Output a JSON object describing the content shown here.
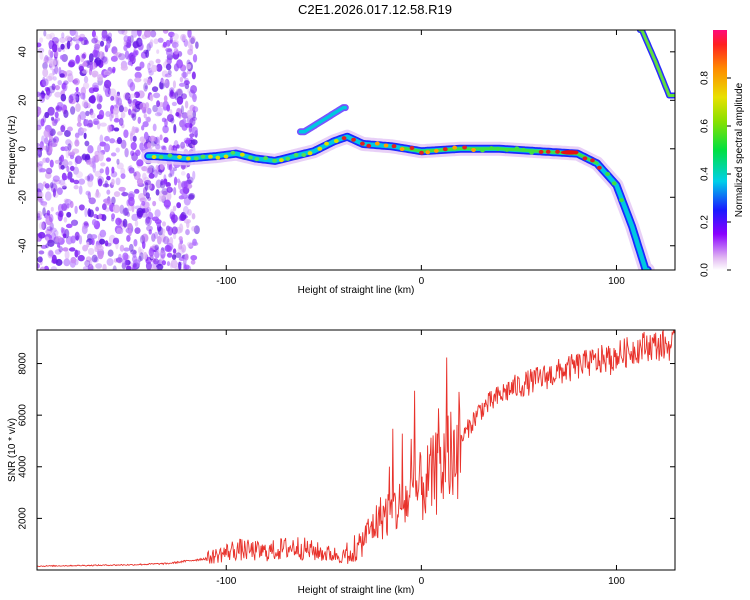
{
  "title": "C2E1.2026.017.12.58.R19",
  "chart_data": [
    {
      "type": "heatmap",
      "name": "spectrogram",
      "xlabel": "Height of straight line (km)",
      "ylabel": "Frequency (Hz)",
      "xlim": [
        -197,
        130
      ],
      "ylim": [
        -50,
        49
      ],
      "xticks": [
        -100,
        0,
        100
      ],
      "yticks": [
        -40,
        -20,
        0,
        20,
        40
      ],
      "colorbar": {
        "label": "Normalized spectral amplitude",
        "range": [
          0,
          1
        ],
        "ticks": [
          "0.0",
          "0.2",
          "0.4",
          "0.6",
          "0.8"
        ],
        "tick_values": [
          0.0,
          0.2,
          0.4,
          0.6,
          0.8
        ]
      },
      "ridge": [
        {
          "x": -137,
          "y": -3
        },
        {
          "x": -120,
          "y": -4
        },
        {
          "x": -105,
          "y": -3
        },
        {
          "x": -95,
          "y": -2
        },
        {
          "x": -85,
          "y": -4
        },
        {
          "x": -75,
          "y": -5
        },
        {
          "x": -65,
          "y": -3
        },
        {
          "x": -55,
          "y": -1
        },
        {
          "x": -45,
          "y": 3
        },
        {
          "x": -38,
          "y": 5
        },
        {
          "x": -30,
          "y": 2
        },
        {
          "x": -15,
          "y": 1
        },
        {
          "x": 0,
          "y": -1
        },
        {
          "x": 20,
          "y": 0
        },
        {
          "x": 40,
          "y": 0
        },
        {
          "x": 60,
          "y": -1
        },
        {
          "x": 80,
          "y": -2
        },
        {
          "x": 90,
          "y": -6
        },
        {
          "x": 100,
          "y": -15
        },
        {
          "x": 108,
          "y": -32
        },
        {
          "x": 115,
          "y": -50
        }
      ],
      "branch": [
        {
          "x": -60,
          "y": 7
        },
        {
          "x": -50,
          "y": 12
        },
        {
          "x": -40,
          "y": 17
        }
      ],
      "alias": [
        {
          "x": 113,
          "y": 49
        },
        {
          "x": 120,
          "y": 36
        },
        {
          "x": 127,
          "y": 22
        }
      ]
    },
    {
      "type": "line",
      "name": "snr",
      "xlabel": "Height of straight line (km)",
      "ylabel": "SNR (10 * v/v)",
      "xlim": [
        -197,
        130
      ],
      "ylim": [
        0,
        9300
      ],
      "xticks": [
        -100,
        0,
        100
      ],
      "yticks": [
        2000,
        4000,
        6000,
        8000
      ],
      "color": "#e8322b",
      "trend": [
        {
          "x": -197,
          "y": 150
        },
        {
          "x": -150,
          "y": 200
        },
        {
          "x": -130,
          "y": 250
        },
        {
          "x": -110,
          "y": 450
        },
        {
          "x": -95,
          "y": 800
        },
        {
          "x": -80,
          "y": 700
        },
        {
          "x": -65,
          "y": 900
        },
        {
          "x": -50,
          "y": 650
        },
        {
          "x": -35,
          "y": 500
        },
        {
          "x": -28,
          "y": 1400
        },
        {
          "x": -20,
          "y": 2100
        },
        {
          "x": -10,
          "y": 2500
        },
        {
          "x": 0,
          "y": 3200
        },
        {
          "x": 10,
          "y": 3900
        },
        {
          "x": 20,
          "y": 5000
        },
        {
          "x": 30,
          "y": 6200
        },
        {
          "x": 45,
          "y": 7000
        },
        {
          "x": 60,
          "y": 7400
        },
        {
          "x": 80,
          "y": 7900
        },
        {
          "x": 100,
          "y": 8300
        },
        {
          "x": 115,
          "y": 8700
        },
        {
          "x": 130,
          "y": 8700
        }
      ]
    }
  ]
}
